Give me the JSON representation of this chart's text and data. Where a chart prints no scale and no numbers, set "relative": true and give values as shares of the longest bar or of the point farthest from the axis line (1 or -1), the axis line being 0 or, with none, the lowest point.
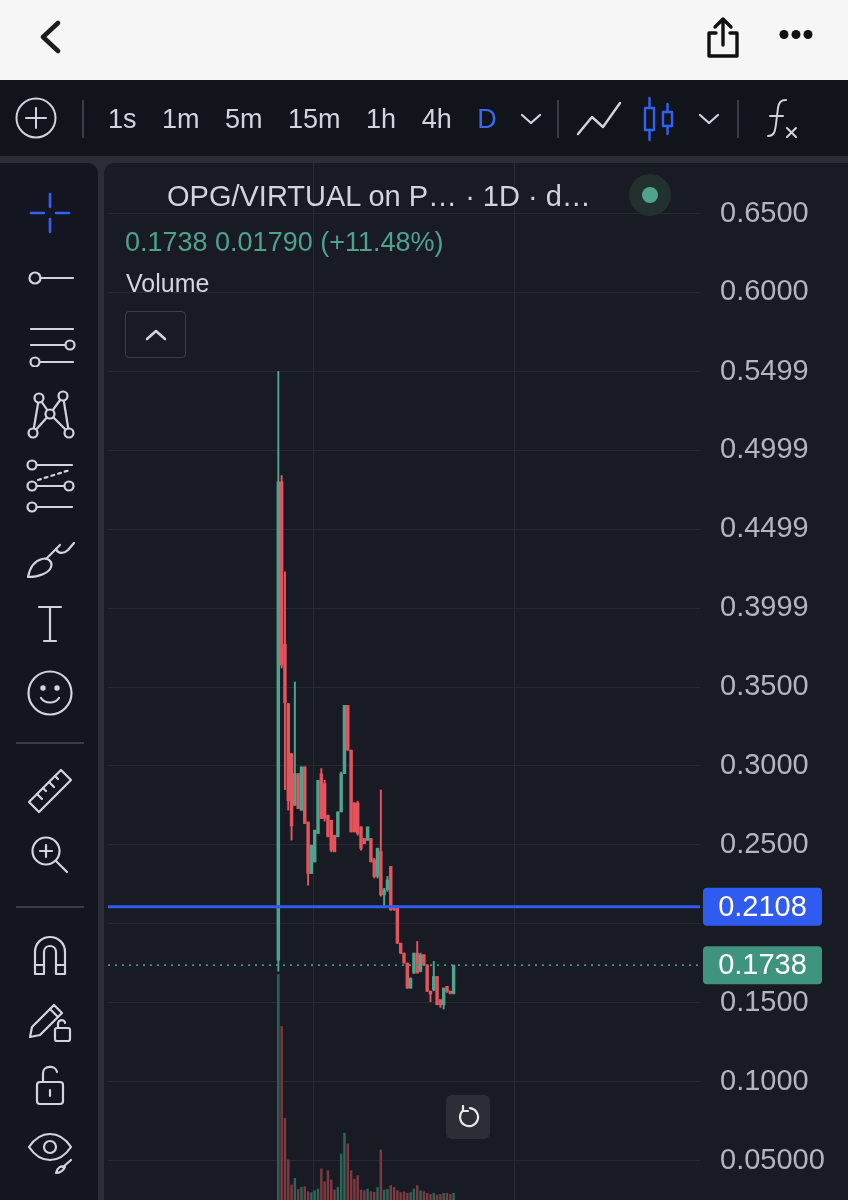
{
  "chart_data": [
    {
      "type": "candlestick",
      "title": "OPG/VIRTUAL on P… · 1D · d…",
      "subtitle": "0.1738 0.01790 (+11.48%)",
      "annotations": [
        "1s",
        "1m",
        "5m",
        "15m",
        "1h",
        "4h",
        "D"
      ],
      "categories": [
        null,
        null,
        null,
        null,
        null,
        null,
        null,
        null,
        null,
        null,
        null,
        null,
        null,
        null,
        null,
        null,
        null,
        null,
        null,
        null,
        null,
        null,
        null,
        null,
        null,
        null,
        null,
        null,
        null,
        null,
        null,
        null,
        null,
        null,
        null,
        null,
        null,
        null,
        null,
        null,
        null,
        null,
        null,
        null,
        null,
        null,
        null,
        null,
        null,
        null,
        null,
        null,
        null,
        null,
        null,
        null,
        null,
        null,
        null,
        null,
        null,
        null,
        null,
        null,
        null,
        null,
        null,
        null,
        null,
        null,
        null,
        null,
        null,
        null,
        null,
        null,
        null,
        null,
        null,
        null,
        null,
        null,
        null,
        null,
        null,
        null,
        null,
        null,
        null,
        null,
        null,
        null,
        null,
        null,
        null,
        null,
        null,
        null,
        null,
        null,
        null,
        null,
        null,
        null,
        null,
        null,
        null,
        null,
        null,
        null,
        null,
        null,
        null,
        null,
        null,
        null,
        null,
        null,
        null,
        null,
        null,
        null,
        null,
        null,
        null,
        null,
        null,
        null,
        null,
        null,
        null,
        null,
        null,
        null,
        null,
        null,
        null,
        null,
        null,
        null,
        null,
        null,
        null,
        null,
        null,
        null,
        null,
        null,
        null,
        null,
        null,
        null,
        null,
        null,
        null,
        null,
        null,
        null,
        null,
        null,
        null,
        null,
        null,
        null,
        null,
        null,
        null,
        null,
        null,
        null,
        null,
        null,
        null,
        null,
        null,
        null,
        null,
        null,
        null
      ],
      "ohlc": [
        null,
        null,
        null,
        null,
        null,
        null,
        null,
        null,
        null,
        null,
        null,
        null,
        null,
        null,
        null,
        null,
        null,
        null,
        null,
        null,
        null,
        null,
        null,
        null,
        null,
        null,
        null,
        null,
        null,
        null,
        null,
        null,
        null,
        null,
        null,
        null,
        null,
        null,
        null,
        null,
        null,
        null,
        null,
        null,
        null,
        null,
        null,
        null,
        null,
        null,
        null,
        [
          0.177,
          0.55,
          0.17,
          0.48
        ],
        [
          0.48,
          0.484,
          0.362,
          0.364
        ],
        [
          0.377,
          0.423,
          0.285,
          0.34
        ],
        [
          0.3395,
          0.3395,
          0.272,
          0.278
        ],
        [
          0.3078,
          0.3078,
          0.253,
          0.262
        ],
        [
          0.2751,
          0.3532,
          0.275,
          0.2951
        ],
        [
          0.2951,
          0.2951,
          0.273,
          0.273
        ],
        [
          0.2719,
          0.2994,
          0.2719,
          0.2994
        ],
        [
          0.2994,
          0.2994,
          0.2635,
          0.2635
        ],
        [
          0.2645,
          0.2645,
          0.2245,
          0.2318
        ],
        [
          0.2318,
          0.2498,
          0.2318,
          0.2498
        ],
        [
          0.2392,
          0.2593,
          0.2392,
          0.2593
        ],
        [
          0.2572,
          0.2909,
          0.2572,
          0.2909
        ],
        [
          0.2951,
          0.2983,
          0.2667,
          0.2667
        ],
        [
          0.2888,
          0.2909,
          0.265,
          0.2667
        ],
        [
          0.2688,
          0.2688,
          0.2551,
          0.2551
        ],
        [
          0.2656,
          0.2656,
          0.2456,
          0.2466
        ],
        [
          0.2561,
          0.2561,
          0.2456,
          0.2456
        ],
        [
          0.2551,
          0.2709,
          0.2551,
          0.2709
        ],
        [
          0.2709,
          0.2962,
          0.2709,
          0.2951
        ],
        [
          0.2951,
          0.3384,
          0.2951,
          0.3384
        ],
        [
          0.3384,
          0.3384,
          0.31,
          0.31
        ],
        [
          0.31,
          0.31,
          0.2582,
          0.2582
        ],
        [
          0.2766,
          0.2766,
          0.2582,
          0.2582
        ],
        [
          0.2766,
          0.2777,
          0.2561,
          0.2572
        ],
        [
          0.2614,
          0.2614,
          0.2466,
          0.2477
        ],
        [
          0.254,
          0.254,
          0.2508,
          0.2508
        ],
        [
          0.2529,
          0.2614,
          0.2529,
          0.2614
        ],
        [
          0.254,
          0.254,
          0.2392,
          0.2392
        ],
        [
          0.2405,
          0.2415,
          0.229,
          0.23
        ],
        [
          0.23,
          0.2479,
          0.229,
          0.2479
        ],
        [
          0.2458,
          0.2848,
          0.2175,
          0.2183
        ],
        [
          0.2183,
          0.2225,
          0.211,
          0.2215
        ],
        [
          0.2215,
          0.23,
          0.2205,
          0.2278
        ],
        [
          0.2363,
          0.2363,
          0.2085,
          0.2088
        ],
        [
          0.2105,
          0.2115,
          0.2085,
          0.209
        ],
        [
          0.211,
          0.2115,
          0.1875,
          0.1877
        ],
        [
          0.1877,
          0.1877,
          0.181,
          0.1814
        ],
        [
          0.1814,
          0.1814,
          0.175,
          0.1751
        ],
        [
          0.1751,
          0.1751,
          0.159,
          0.1593
        ],
        [
          0.1593,
          0.1656,
          0.159,
          0.1656
        ],
        [
          0.1688,
          0.1814,
          0.1685,
          0.1814
        ],
        [
          0.1814,
          0.1888,
          0.1688,
          0.1688
        ],
        [
          0.1698,
          0.1814,
          0.1695,
          0.1804
        ],
        [
          0.1804,
          0.1804,
          0.174,
          0.174
        ],
        [
          0.174,
          0.174,
          0.1572,
          0.1572
        ],
        [
          0.1572,
          0.1575,
          0.1506,
          0.1555
        ],
        [
          0.1582,
          0.1762,
          0.1575,
          0.1666
        ],
        [
          0.1666,
          0.1666,
          0.1487,
          0.1487
        ],
        [
          0.1519,
          0.1519,
          0.147,
          0.1487
        ],
        [
          0.1487,
          0.1593,
          0.146,
          0.1593
        ],
        [
          0.1603,
          0.1603,
          0.1565,
          0.1572
        ],
        [
          0.1572,
          0.1575,
          0.1555,
          0.1559
        ],
        [
          0.1559,
          0.1738,
          0.1555,
          0.1738
        ],
        null,
        null,
        null,
        null,
        null,
        null,
        null,
        null,
        null,
        null,
        null,
        null,
        null,
        null,
        null,
        null,
        null,
        null,
        null,
        null,
        null,
        null,
        null,
        null,
        null,
        null,
        null,
        null,
        null,
        null,
        null,
        null,
        null,
        null,
        null,
        null,
        null,
        null,
        null,
        null,
        null,
        null,
        null,
        null,
        null,
        null,
        null,
        null,
        null,
        null,
        null,
        null,
        null,
        null,
        null,
        null,
        null,
        null,
        null,
        null,
        null,
        null,
        null,
        null,
        null,
        null,
        null,
        null,
        null,
        null,
        null,
        null,
        null,
        null
      ],
      "colors": [
        null,
        null,
        null,
        null,
        null,
        null,
        null,
        null,
        null,
        null,
        null,
        null,
        null,
        null,
        null,
        null,
        null,
        null,
        null,
        null,
        null,
        null,
        null,
        null,
        null,
        null,
        null,
        null,
        null,
        null,
        null,
        null,
        null,
        null,
        null,
        null,
        null,
        null,
        null,
        null,
        null,
        null,
        null,
        null,
        null,
        null,
        null,
        null,
        null,
        null,
        null,
        "#4fa28b",
        "#e5535c",
        "#e5535c",
        "#e5535c",
        "#e5535c",
        "#4fa28b",
        "#e5535c",
        "#4fa28b",
        "#e5535c",
        "#e5535c",
        "#4fa28b",
        "#4fa28b",
        "#4fa28b",
        "#e5535c",
        "#e5535c",
        "#e5535c",
        "#e5535c",
        "#e5535c",
        "#4fa28b",
        "#4fa28b",
        "#4fa28b",
        "#e5535c",
        "#e5535c",
        "#e5535c",
        "#e5535c",
        "#e5535c",
        "#e5535c",
        "#4fa28b",
        "#e5535c",
        "#e5535c",
        "#4fa28b",
        "#e5535c",
        "#4fa28b",
        "#4fa28b",
        "#e5535c",
        "#e5535c",
        "#e5535c",
        "#e5535c",
        "#e5535c",
        "#e5535c",
        "#4fa28b",
        "#4fa28b",
        "#e5535c",
        "#4fa28b",
        "#e5535c",
        "#e5535c",
        "#e5535c",
        "#4fa28b",
        "#e5535c",
        "#e5535c",
        "#4fa28b",
        "#e5535c",
        "#e5535c",
        "#4fa28b",
        null,
        null,
        null,
        null,
        null,
        null,
        null,
        null,
        null,
        null,
        null,
        null,
        null,
        null,
        null,
        null,
        null,
        null,
        null,
        null,
        null,
        null,
        null,
        null,
        null,
        null,
        null,
        null,
        null,
        null,
        null,
        null,
        null,
        null,
        null,
        null,
        null,
        null,
        null,
        null,
        null,
        null,
        null,
        null,
        null,
        null,
        null,
        null,
        null,
        null,
        null,
        null,
        null,
        null,
        null,
        null,
        null,
        null,
        null,
        null,
        null,
        null,
        null,
        null,
        null,
        null,
        null,
        null,
        null,
        null,
        null,
        null,
        null,
        null
      ],
      "ylim": [
        0.025,
        0.682
      ],
      "yticks": [
        {
          "value": 0.05,
          "label": "0.05000"
        },
        {
          "value": 0.1,
          "label": "0.1000"
        },
        {
          "value": 0.15,
          "label": "0.1500"
        },
        {
          "value": 0.2,
          "label": null
        },
        {
          "value": 0.25,
          "label": "0.2500"
        },
        {
          "value": 0.3,
          "label": "0.3000"
        },
        {
          "value": 0.35,
          "label": "0.3500"
        },
        {
          "value": 0.3999,
          "label": "0.3999"
        },
        {
          "value": 0.4499,
          "label": "0.4499"
        },
        {
          "value": 0.4999,
          "label": "0.4999"
        },
        {
          "value": 0.5499,
          "label": "0.5499"
        },
        {
          "value": 0.6,
          "label": "0.6000"
        },
        {
          "value": 0.65,
          "label": "0.6500"
        }
      ],
      "grid": true,
      "tick_labels": "y",
      "ref_lines": [
        {
          "axis": "y",
          "value": 0.2108,
          "label": "0.2108",
          "color": "#2f5bf0"
        },
        {
          "axis": "y",
          "value": 0.1738,
          "label": "0.1738",
          "color": "#3f9480",
          "line_style": "dotted"
        }
      ]
    },
    {
      "type": "bar",
      "title": "Volume",
      "relative": true,
      "tick_labels": false,
      "categories": [
        null,
        null,
        null,
        null,
        null,
        null,
        null,
        null,
        null,
        null,
        null,
        null,
        null,
        null,
        null,
        null,
        null,
        null,
        null,
        null,
        null,
        null,
        null,
        null,
        null,
        null,
        null,
        null,
        null,
        null,
        null,
        null,
        null,
        null,
        null,
        null,
        null,
        null,
        null,
        null,
        null,
        null,
        null,
        null,
        null,
        null,
        null,
        null,
        null,
        null,
        null,
        null,
        null,
        null,
        null,
        null,
        null,
        null,
        null,
        null,
        null,
        null,
        null,
        null,
        null,
        null,
        null,
        null,
        null,
        null,
        null,
        null,
        null,
        null,
        null,
        null,
        null,
        null,
        null,
        null,
        null,
        null,
        null,
        null,
        null,
        null,
        null,
        null,
        null,
        null,
        null,
        null,
        null,
        null,
        null,
        null,
        null,
        null,
        null,
        null,
        null,
        null,
        null,
        null,
        null,
        null,
        null,
        null,
        null,
        null,
        null,
        null,
        null,
        null,
        null,
        null,
        null,
        null,
        null,
        null,
        null,
        null,
        null,
        null,
        null,
        null,
        null,
        null,
        null,
        null,
        null,
        null,
        null,
        null,
        null,
        null,
        null,
        null,
        null,
        null,
        null,
        null,
        null,
        null,
        null,
        null,
        null,
        null,
        null,
        null,
        null,
        null,
        null,
        null,
        null,
        null,
        null,
        null,
        null,
        null,
        null,
        null,
        null,
        null,
        null,
        null,
        null,
        null,
        null,
        null,
        null,
        null,
        null,
        null,
        null,
        null,
        null,
        null,
        null
      ],
      "values": [
        null,
        null,
        null,
        null,
        null,
        null,
        null,
        null,
        null,
        null,
        null,
        null,
        null,
        null,
        null,
        null,
        null,
        null,
        null,
        null,
        null,
        null,
        null,
        null,
        null,
        null,
        null,
        null,
        null,
        null,
        null,
        null,
        null,
        null,
        null,
        null,
        null,
        null,
        null,
        null,
        null,
        null,
        null,
        null,
        null,
        null,
        null,
        null,
        null,
        null,
        null,
        1,
        0.77,
        0.363,
        0.178,
        0.067,
        0.096,
        0.047,
        0.056,
        0.059,
        0.037,
        0.033,
        0.041,
        0.049,
        0.138,
        0.081,
        0.13,
        0.089,
        0.044,
        0.056,
        0.204,
        0.296,
        0.249,
        0.13,
        0.092,
        0.108,
        0.044,
        0.041,
        0.049,
        0.037,
        0.034,
        0.055,
        0.222,
        0.044,
        0.047,
        0.064,
        0.056,
        0.041,
        0.033,
        0.037,
        0.03,
        0.033,
        0.049,
        0.064,
        0.041,
        0.037,
        0.03,
        0.025,
        0.03,
        0.022,
        0.025,
        0.03,
        0.03,
        0.025,
        0.03,
        null,
        null,
        null,
        null,
        null,
        null,
        null,
        null,
        null,
        null,
        null,
        null,
        null,
        null,
        null,
        null,
        null,
        null,
        null,
        null,
        null,
        null,
        null,
        null,
        null,
        null,
        null,
        null,
        null,
        null,
        null,
        null,
        null,
        null,
        null,
        null,
        null,
        null,
        null,
        null,
        null,
        null,
        null,
        null,
        null,
        null,
        null,
        null,
        null,
        null,
        null,
        null,
        null,
        null,
        null,
        null,
        null,
        null,
        null,
        null,
        null,
        null,
        null,
        null,
        null,
        null,
        null,
        null,
        null,
        null,
        null,
        null,
        null,
        null
      ],
      "colors": [
        null,
        null,
        null,
        null,
        null,
        null,
        null,
        null,
        null,
        null,
        null,
        null,
        null,
        null,
        null,
        null,
        null,
        null,
        null,
        null,
        null,
        null,
        null,
        null,
        null,
        null,
        null,
        null,
        null,
        null,
        null,
        null,
        null,
        null,
        null,
        null,
        null,
        null,
        null,
        null,
        null,
        null,
        null,
        null,
        null,
        null,
        null,
        null,
        null,
        null,
        null,
        "#2e6458",
        "#7d3940",
        "#7d3940",
        "#7d3940",
        "#7d3940",
        "#2e6458",
        "#7d3940",
        "#2e6458",
        "#7d3940",
        "#7d3940",
        "#2e6458",
        "#2e6458",
        "#2e6458",
        "#7d3940",
        "#7d3940",
        "#7d3940",
        "#7d3940",
        "#7d3940",
        "#2e6458",
        "#2e6458",
        "#2e6458",
        "#7d3940",
        "#7d3940",
        "#7d3940",
        "#7d3940",
        "#7d3940",
        "#7d3940",
        "#2e6458",
        "#7d3940",
        "#7d3940",
        "#2e6458",
        "#7d3940",
        "#2e6458",
        "#2e6458",
        "#7d3940",
        "#7d3940",
        "#7d3940",
        "#7d3940",
        "#7d3940",
        "#7d3940",
        "#2e6458",
        "#2e6458",
        "#7d3940",
        "#2e6458",
        "#7d3940",
        "#7d3940",
        "#7d3940",
        "#2e6458",
        "#7d3940",
        "#7d3940",
        "#2e6458",
        "#7d3940",
        "#7d3940",
        "#2e6458",
        null,
        null,
        null,
        null,
        null,
        null,
        null,
        null,
        null,
        null,
        null,
        null,
        null,
        null,
        null,
        null,
        null,
        null,
        null,
        null,
        null,
        null,
        null,
        null,
        null,
        null,
        null,
        null,
        null,
        null,
        null,
        null,
        null,
        null,
        null,
        null,
        null,
        null,
        null,
        null,
        null,
        null,
        null,
        null,
        null,
        null,
        null,
        null,
        null,
        null,
        null,
        null,
        null,
        null,
        null,
        null,
        null,
        null,
        null,
        null,
        null,
        null,
        null,
        null,
        null,
        null,
        null,
        null,
        null,
        null,
        null,
        null,
        null,
        null
      ]
    }
  ]
}
